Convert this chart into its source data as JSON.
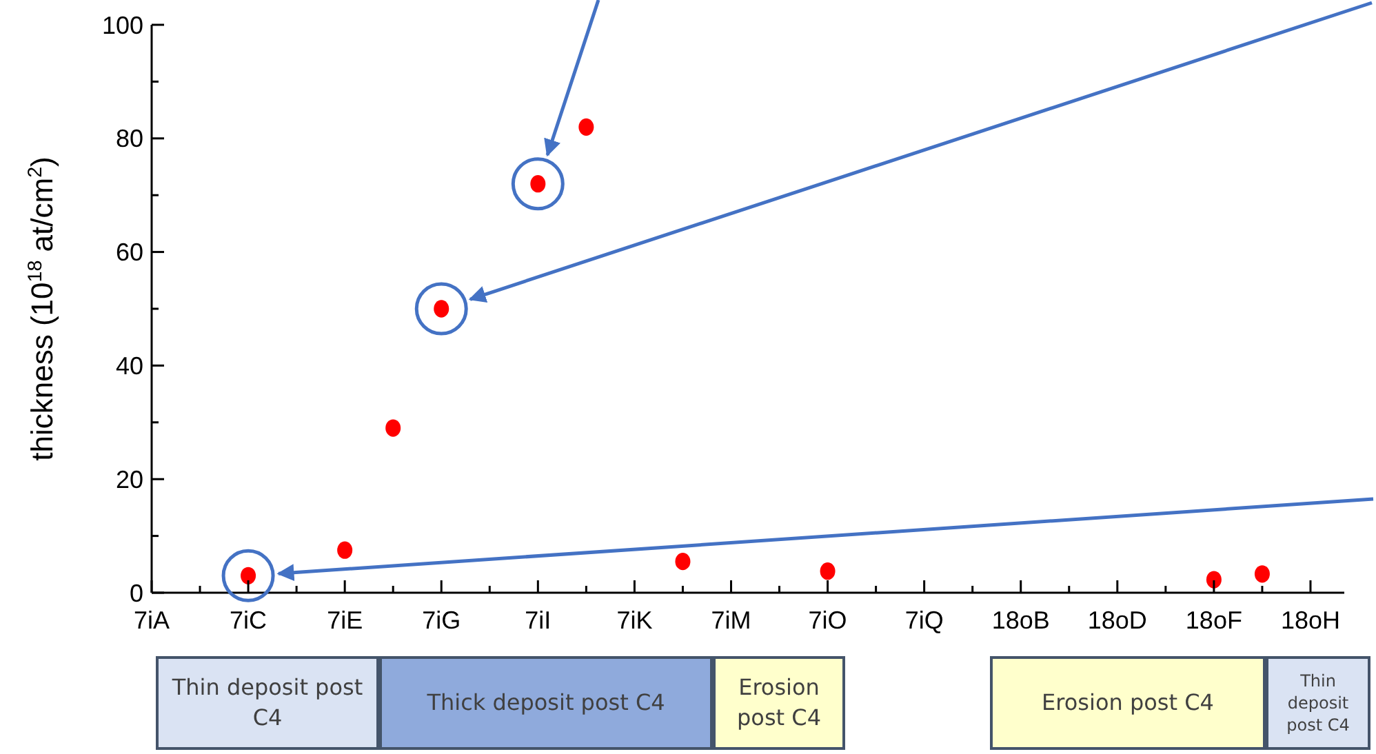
{
  "chart_data": {
    "type": "scatter",
    "ylabel": "thickness (10$^{18}$ at/cm$^{2}$)",
    "categories": [
      "7iA",
      null,
      "7iC",
      null,
      "7iE",
      null,
      "7iG",
      null,
      "7iI",
      null,
      "7iK",
      null,
      "7iM",
      null,
      "7iO",
      null,
      "7iQ",
      null,
      "18oB",
      null,
      "18oD",
      null,
      "18oF",
      null,
      "18oH"
    ],
    "series": [
      {
        "color": "#ff0000",
        "values": [
          null,
          null,
          3.0,
          null,
          7.5,
          29,
          50,
          null,
          72,
          82,
          null,
          5.5,
          null,
          null,
          3.8,
          null,
          null,
          null,
          null,
          null,
          null,
          null,
          2.3,
          3.3,
          null
        ]
      }
    ],
    "ylim": [
      0,
      100
    ],
    "yticks": [
      0,
      {
        "value": 10,
        "label": null
      },
      20,
      {
        "value": 30,
        "label": null
      },
      40,
      {
        "value": 50,
        "label": null
      },
      60,
      {
        "value": 70,
        "label": null
      },
      80,
      {
        "value": 90,
        "label": null
      },
      100
    ],
    "marker": "circle",
    "grid": false,
    "legend": false,
    "annotations": [
      "Thin deposit post C4",
      "Thick deposit post C4",
      "Erosion post C4",
      "Erosion post C4",
      "Thin deposit post C4"
    ]
  }
}
